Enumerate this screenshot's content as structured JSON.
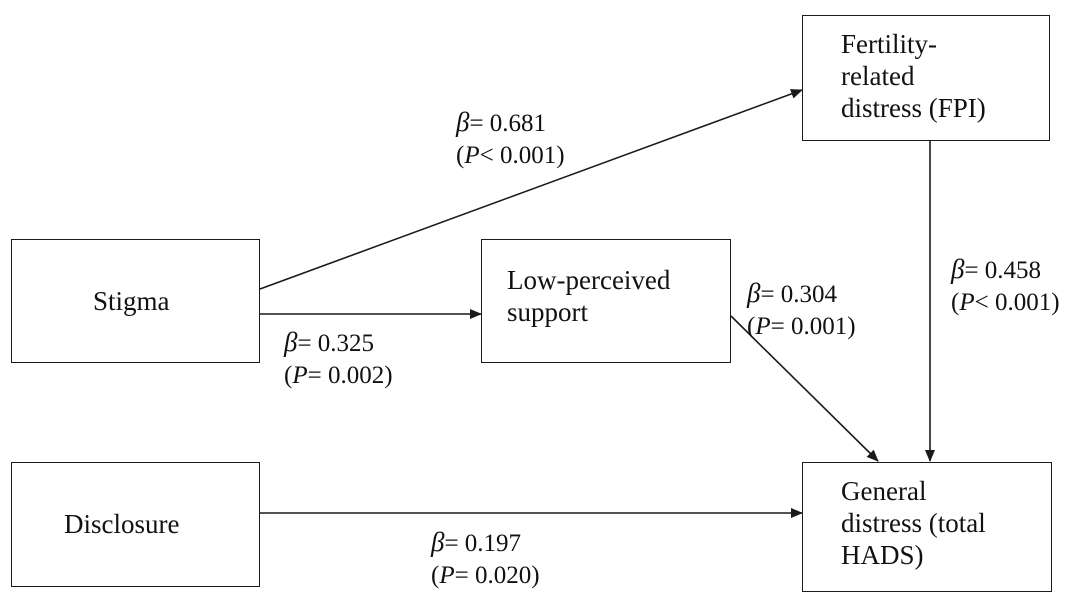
{
  "nodes": {
    "fpi": {
      "label": "Fertility-\nrelated\ndistress (FPI)"
    },
    "stigma": {
      "label": "Stigma"
    },
    "support": {
      "label": "Low-perceived\nsupport"
    },
    "disclosure": {
      "label": "Disclosure"
    },
    "hads": {
      "label": "General\ndistress (total\nHADS)"
    }
  },
  "paths": {
    "stigma_fpi": {
      "beta_symbol": "β",
      "beta": "= 0.681",
      "p_open": "(",
      "p_symbol": "P",
      "p": "< 0.001)"
    },
    "stigma_support": {
      "beta_symbol": "β",
      "beta": "= 0.325",
      "p_open": "(",
      "p_symbol": "P",
      "p": "= 0.002)"
    },
    "support_hads": {
      "beta_symbol": "β",
      "beta": "= 0.304",
      "p_open": "(",
      "p_symbol": "P",
      "p": "= 0.001)"
    },
    "fpi_hads": {
      "beta_symbol": "β",
      "beta": "= 0.458",
      "p_open": "(",
      "p_symbol": "P",
      "p": "< 0.001)"
    },
    "disclosure_hads": {
      "beta_symbol": "β",
      "beta": "= 0.197",
      "p_open": "(",
      "p_symbol": "P",
      "p": "= 0.020)"
    }
  }
}
